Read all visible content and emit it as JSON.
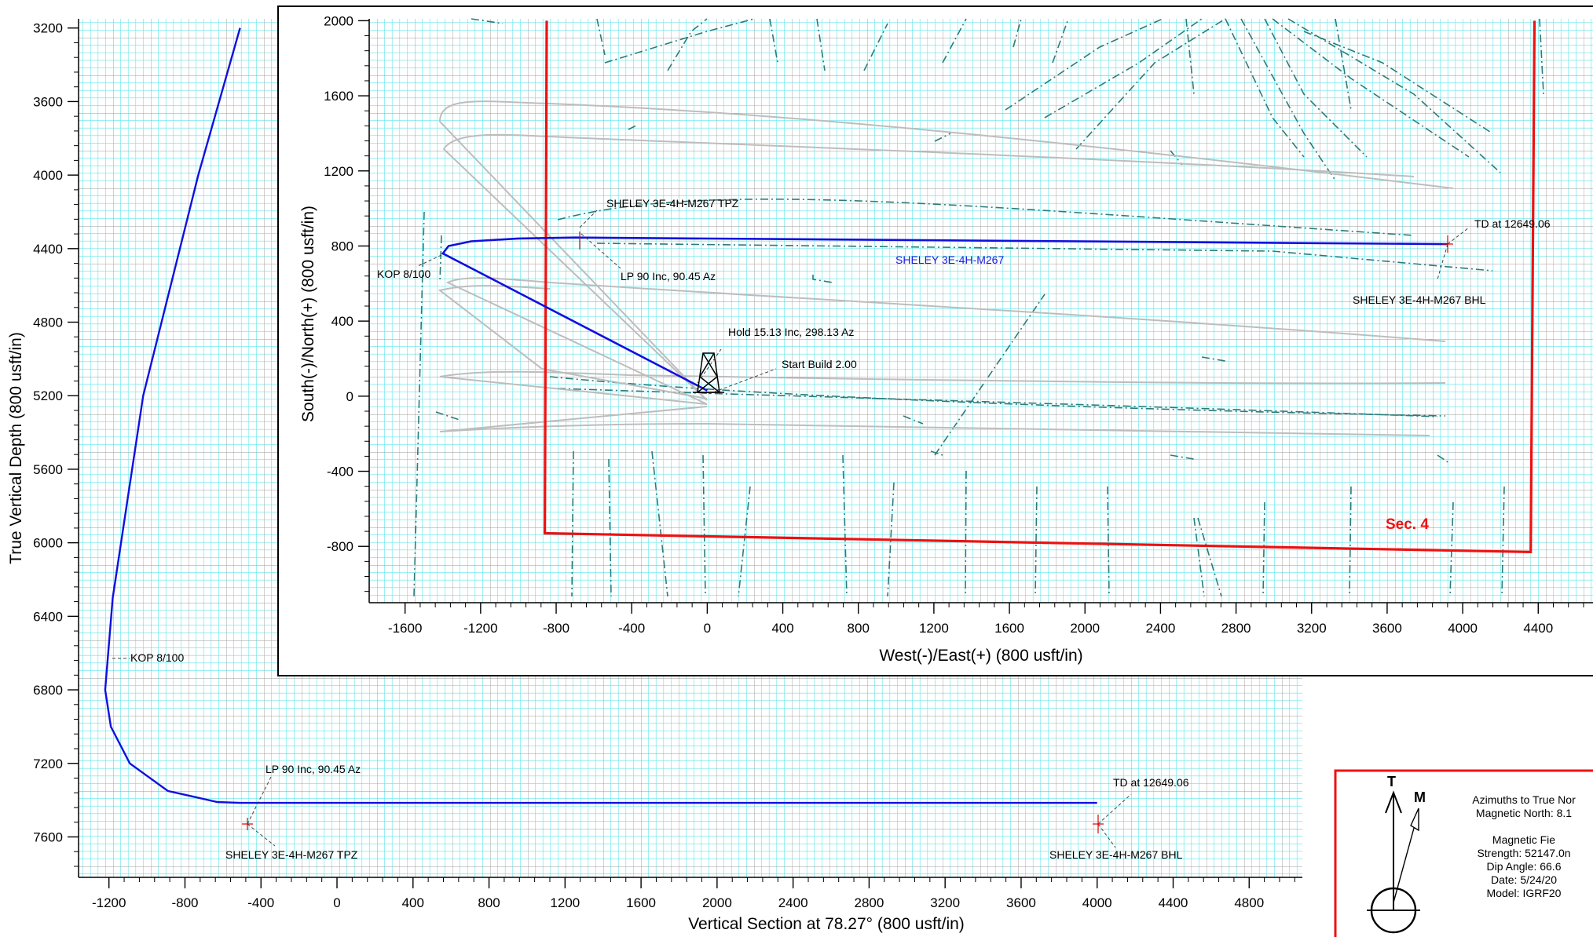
{
  "section_view": {
    "xlabel": "Vertical Section at 78.27° (800 usft/in)",
    "ylabel": "True Vertical Depth (800 usft/in)",
    "xticks": [
      -1200,
      -800,
      -400,
      0,
      400,
      800,
      1200,
      1600,
      2000,
      2400,
      2800,
      3200,
      3600,
      4000,
      4400,
      4800
    ],
    "yticks": [
      3200,
      3600,
      4000,
      4400,
      4800,
      5200,
      5600,
      6000,
      6400,
      6800,
      7200,
      7600
    ],
    "annotations": {
      "kop": "KOP  8/100",
      "lp": "LP 90 Inc, 90.45 Az",
      "tpz": "SHELEY 3E-4H-M267 TPZ",
      "td": "TD at 12649.06",
      "bhl": "SHELEY 3E-4H-M267 BHL"
    }
  },
  "plan_view": {
    "xlabel": "West(-)/East(+) (800 usft/in)",
    "ylabel": "South(-)/North(+) (800 usft/in)",
    "xticks": [
      -1600,
      -1200,
      -800,
      -400,
      0,
      400,
      800,
      1200,
      1600,
      2000,
      2400,
      2800,
      3200,
      3600,
      4000,
      4400
    ],
    "yticks": [
      -800,
      -400,
      0,
      400,
      800,
      1200,
      1600,
      2000
    ],
    "well_label": "SHELEY 3E-4H-M267",
    "section_label": "Sec. 4",
    "annotations": {
      "tpz": "SHELEY 3E-4H-M267 TPZ",
      "kop": "KOP 8/100",
      "lp": "LP 90 Inc, 90.45 Az",
      "hold": "Hold 15.13 Inc, 298.13 Az",
      "start": "Start Build 2.00",
      "td": "TD at 12649.06",
      "bhl": "SHELEY 3E-4H-M267 BHL"
    }
  },
  "legend": {
    "true_north": "T",
    "magnetic_north": "M",
    "lines": [
      "Azimuths to True Nor",
      "Magnetic North: 8.1",
      "",
      "Magnetic Fie",
      "Strength: 52147.0n",
      "Dip Angle: 66.6",
      "Date: 5/24/20",
      "Model: IGRF20"
    ]
  },
  "chart_data": [
    {
      "type": "line",
      "title": "",
      "xlabel": "Vertical Section at 78.27° (800 usft/in)",
      "ylabel": "True Vertical Depth (800 usft/in)",
      "xlim": [
        -1360,
        5080
      ],
      "ylim": [
        7820,
        3150
      ],
      "y_inverted": true,
      "series": [
        {
          "name": "SHELEY 3E-4H-M267",
          "x": [
            -510,
            -730,
            -1020,
            -1180,
            -1220,
            -1190,
            -1090,
            -890,
            -630,
            -510,
            4000
          ],
          "y": [
            3200,
            4000,
            5200,
            6300,
            6800,
            7000,
            7200,
            7350,
            7410,
            7415,
            7415
          ]
        }
      ]
    },
    {
      "type": "line",
      "title": "",
      "xlabel": "West(-)/East(+) (800 usft/in)",
      "ylabel": "South(-)/North(+) (800 usft/in)",
      "xlim": [
        -1790,
        4690
      ],
      "ylim": [
        -1100,
        2010
      ],
      "series": [
        {
          "name": "SHELEY 3E-4H-M267",
          "x": [
            0,
            -1400,
            -1370,
            -1250,
            -1000,
            -700,
            3920
          ],
          "y": [
            30,
            760,
            800,
            825,
            840,
            845,
            810
          ]
        }
      ],
      "section_boundary_x": [
        -850,
        -860,
        4360,
        4380
      ],
      "section_boundary_y": [
        2000,
        -730,
        -830,
        2000
      ]
    }
  ]
}
